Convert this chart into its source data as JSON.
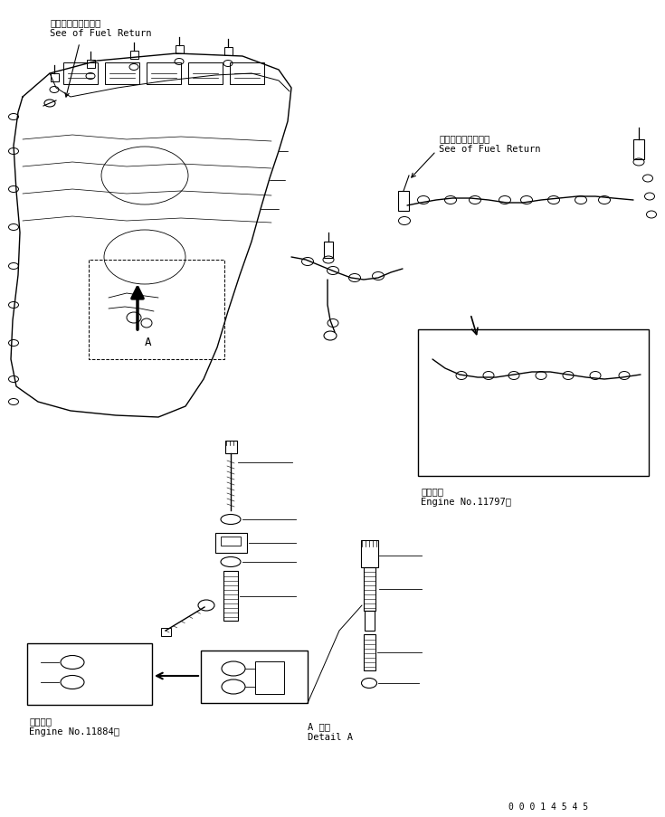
{
  "bg_color": "#ffffff",
  "fig_width": 7.35,
  "fig_height": 9.04,
  "label_top_left_jp": "フェルリターン参照",
  "label_top_left_en": "See of Fuel Return",
  "label_top_right_jp": "フェルリターン参照",
  "label_top_right_en": "See of Fuel Return",
  "label_engine_right_jp": "適用号機",
  "label_engine_right_en": "Engine No.11797～",
  "label_engine_left_jp": "適用号機",
  "label_engine_left_en": "Engine No.11884～",
  "label_detail_jp": "A 詳細",
  "label_detail_en": "Detail A",
  "page_number": "0 0 0 1 4 5 4 5"
}
